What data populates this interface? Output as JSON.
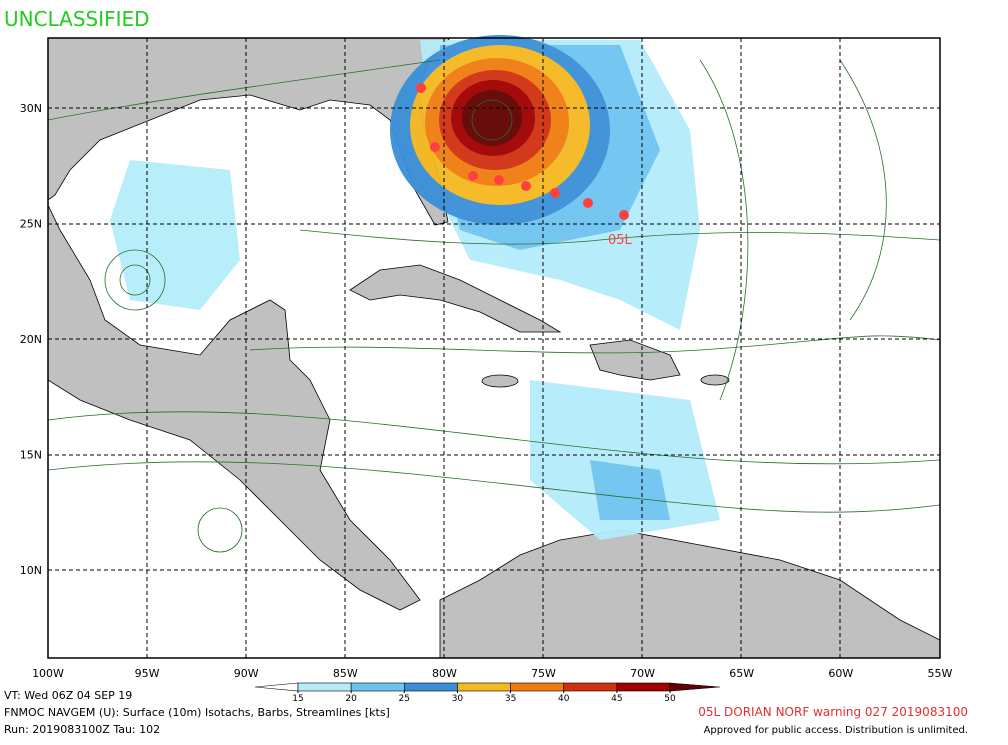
{
  "header": {
    "classification": "UNCLASSIFIED"
  },
  "map": {
    "lon_labels": [
      "100W",
      "95W",
      "90W",
      "85W",
      "80W",
      "75W",
      "70W",
      "65W",
      "60W",
      "55W"
    ],
    "lat_labels": [
      "30N",
      "25N",
      "20N",
      "15N",
      "10N"
    ],
    "storm_label": "05L"
  },
  "colorbar": {
    "ticks": [
      15,
      20,
      25,
      30,
      35,
      40,
      45,
      50
    ],
    "colors": [
      "#ffffff",
      "#b4ecfa",
      "#6ec4f0",
      "#3a8fd8",
      "#f5b820",
      "#f07c10",
      "#d03010",
      "#a00000",
      "#600000"
    ]
  },
  "footer": {
    "valid_time": "VT: Wed 06Z 04 SEP 19",
    "model": "FNMOC NAVGEM (U): Surface (10m) Isotachs, Barbs, Streamlines [kts]",
    "run": "Run: 2019083100Z Tau: 102",
    "warning": "05L DORIAN NORF warning 027 2019083100",
    "approval": "Approved for public access. Distribution is unlimited."
  }
}
